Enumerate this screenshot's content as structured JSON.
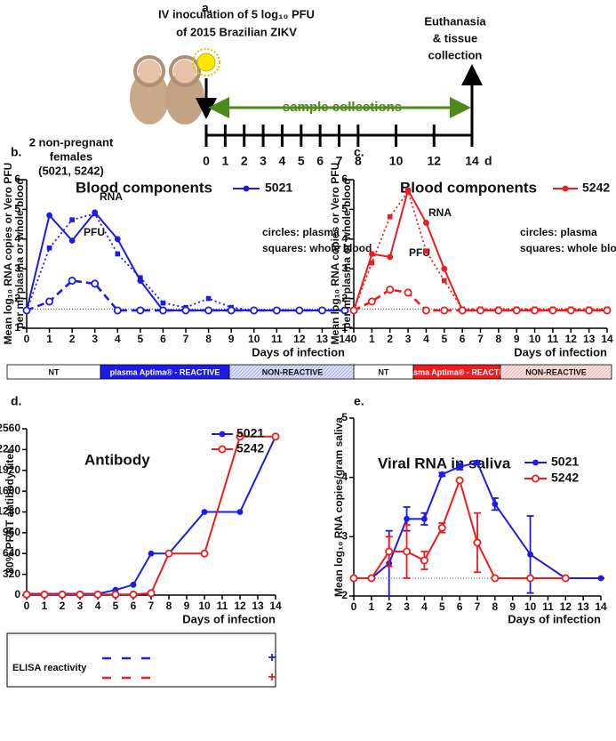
{
  "timeline": {
    "panel": "a.",
    "inoculation": [
      "IV inoculation of 5 log₁₀ PFU",
      "of 2015 Brazilian ZIKV"
    ],
    "euthanasia": [
      "Euthanasia",
      "& tissue",
      "collection"
    ],
    "samples": "sample collections",
    "animals": [
      "2 non-pregnant",
      "females",
      "(5021, 5242)"
    ],
    "days": [
      0,
      1,
      2,
      3,
      4,
      5,
      6,
      7,
      8,
      10,
      12,
      14
    ],
    "day_unit": "d"
  },
  "chart_data": [
    {
      "type": "line",
      "panel": "b.",
      "title": "Blood components",
      "legend_label": "5021",
      "color": "#1c1ce8",
      "annotations": [
        "RNA",
        "PFU",
        "circles: plasma",
        "squares: whole blood"
      ],
      "ylabel": [
        "Mean log₁₀ RNA copies or Vero PFU",
        "per ml plasma or whole blood"
      ],
      "xlabel": "Days of infection",
      "x": [
        0,
        1,
        2,
        3,
        4,
        5,
        6,
        7,
        8,
        9,
        10,
        11,
        12,
        13,
        14
      ],
      "xlim": [
        0,
        14
      ],
      "xticks": [
        0,
        1,
        2,
        3,
        4,
        5,
        6,
        7,
        8,
        9,
        10,
        11,
        12,
        13,
        14
      ],
      "ylim": [
        1,
        6
      ],
      "yticks": [
        1,
        2,
        3,
        4,
        5,
        6
      ],
      "detection_limit": 1.65,
      "series": [
        {
          "marker": "circle",
          "line_style": "solid",
          "values": [
            1.6,
            4.8,
            3.95,
            4.9,
            4.0,
            2.6,
            1.6,
            1.6,
            1.6,
            1.6,
            1.6,
            1.6,
            1.6,
            1.6,
            1.6
          ]
        },
        {
          "marker": "square",
          "line_style": "dotted",
          "values": [
            1.6,
            3.7,
            4.65,
            4.85,
            3.5,
            2.7,
            1.85,
            1.7,
            2.0,
            1.7,
            1.6,
            1.6,
            1.6,
            1.6,
            1.6
          ]
        },
        {
          "marker": "open-circle",
          "line_style": "dashed",
          "values": [
            1.6,
            1.9,
            2.6,
            2.5,
            1.6,
            1.6,
            1.6,
            1.6,
            1.6,
            1.6,
            1.6,
            1.6,
            1.6,
            1.6,
            1.6
          ]
        }
      ],
      "status": [
        "NT",
        "plasma Aptima® - REACTIVE",
        "NON-REACTIVE"
      ]
    },
    {
      "type": "line",
      "panel": "c.",
      "title": "Blood components",
      "legend_label": "5242",
      "color": "#ee1c1c",
      "annotations": [
        "RNA",
        "PFU",
        "circles: plasma",
        "squares: whole blood"
      ],
      "ylabel": [
        "Mean log₁₀ RNA copies or Vero PFU",
        "per ml plasma or whole blood"
      ],
      "xlabel": "Days of infection",
      "x": [
        0,
        1,
        2,
        3,
        4,
        5,
        6,
        7,
        8,
        9,
        10,
        11,
        12,
        13,
        14
      ],
      "xlim": [
        0,
        14
      ],
      "xticks": [
        0,
        1,
        2,
        3,
        4,
        5,
        6,
        7,
        8,
        9,
        10,
        11,
        12,
        13,
        14
      ],
      "ylim": [
        1,
        6
      ],
      "yticks": [
        1,
        2,
        3,
        4,
        5,
        6
      ],
      "detection_limit": 1.65,
      "series": [
        {
          "marker": "circle",
          "line_style": "solid",
          "values": [
            1.6,
            3.5,
            3.4,
            5.65,
            4.55,
            3.0,
            1.6,
            1.6,
            1.6,
            1.6,
            1.6,
            1.6,
            1.6,
            1.6,
            1.6
          ]
        },
        {
          "marker": "square",
          "line_style": "dotted",
          "values": [
            1.6,
            3.2,
            4.75,
            5.6,
            3.6,
            2.6,
            1.65,
            1.65,
            1.65,
            1.65,
            1.65,
            1.65,
            1.65,
            1.65,
            1.65
          ]
        },
        {
          "marker": "open-circle",
          "line_style": "dashed",
          "values": [
            1.6,
            1.9,
            2.3,
            2.2,
            1.6,
            1.6,
            1.6,
            1.6,
            1.6,
            1.6,
            1.6,
            1.6,
            1.6,
            1.6,
            1.6
          ]
        }
      ],
      "status": [
        "NT",
        "plasma Aptima® - REACTIVE",
        "NON-REACTIVE"
      ]
    },
    {
      "type": "line",
      "panel": "d.",
      "title": "Antibody",
      "ylabel": [
        "80% PRNT antibody titer"
      ],
      "xlabel": "Days of infection",
      "x": [
        0,
        1,
        2,
        3,
        4,
        5,
        6,
        7,
        8,
        10,
        12,
        14
      ],
      "xlim": [
        0,
        14
      ],
      "xticks": [
        0,
        1,
        2,
        3,
        4,
        5,
        6,
        7,
        8,
        9,
        10,
        11,
        12,
        13,
        14
      ],
      "ylim": [
        0,
        2560
      ],
      "yticks": [
        0,
        320,
        640,
        960,
        1280,
        1600,
        1920,
        2240,
        2560
      ],
      "series": [
        {
          "name": "5021",
          "color": "#1c1ce8",
          "marker": "circle",
          "line_style": "solid",
          "values": [
            20,
            20,
            20,
            20,
            20,
            80,
            160,
            640,
            640,
            1280,
            1280,
            2440
          ]
        },
        {
          "name": "5242",
          "color": "#ee1c1c",
          "marker": "open-circle",
          "line_style": "solid",
          "values": [
            10,
            10,
            10,
            10,
            10,
            10,
            10,
            30,
            640,
            640,
            2440,
            2440
          ]
        }
      ],
      "elisa_label": "ELISA reactivity",
      "elisa_results": [
        "+",
        "+"
      ]
    },
    {
      "type": "line",
      "panel": "e.",
      "title": "Viral RNA in saliva",
      "ylabel": [
        "Mean log₁₀ RNA copies/gram saliva"
      ],
      "xlabel": "Days of infection",
      "xlim": [
        0,
        14
      ],
      "xticks": [
        0,
        1,
        2,
        3,
        4,
        5,
        6,
        7,
        8,
        9,
        10,
        11,
        12,
        13,
        14
      ],
      "ylim": [
        2,
        5
      ],
      "yticks": [
        2,
        3,
        4,
        5
      ],
      "detection_limit": 2.3,
      "series": [
        {
          "name": "5021",
          "color": "#1c1ce8",
          "marker": "circle",
          "line_style": "solid",
          "x": [
            0,
            1,
            2,
            3,
            4,
            5,
            6,
            7,
            8,
            10,
            12,
            14
          ],
          "values": [
            2.3,
            2.3,
            2.55,
            3.3,
            3.3,
            4.05,
            4.18,
            4.25,
            3.55,
            2.7,
            2.3,
            2.3
          ],
          "errors": [
            0,
            0,
            0.55,
            0.2,
            0.1,
            0.03,
            0.05,
            0.03,
            0.1,
            0.65,
            0,
            0
          ]
        },
        {
          "name": "5242",
          "color": "#ee1c1c",
          "marker": "open-circle",
          "line_style": "solid",
          "x": [
            0,
            1,
            2,
            3,
            4,
            5,
            6,
            7,
            8,
            10,
            12
          ],
          "values": [
            2.3,
            2.3,
            2.75,
            2.75,
            2.6,
            3.15,
            3.95,
            2.9,
            2.3,
            2.3,
            2.3
          ],
          "errors": [
            0,
            0,
            0.25,
            0.45,
            0.15,
            0.08,
            0,
            0.5,
            0,
            0,
            0
          ]
        }
      ]
    }
  ]
}
